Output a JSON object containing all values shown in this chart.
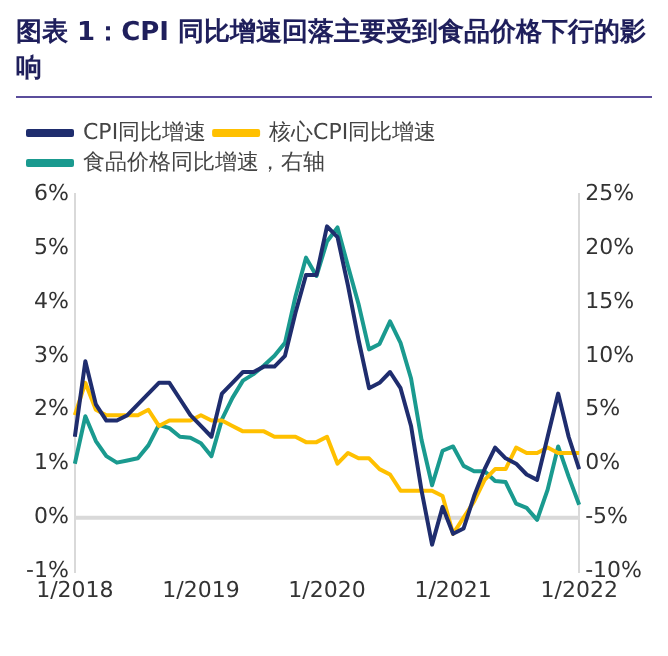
{
  "chart_data": {
    "type": "line",
    "title": "图表 1：CPI 同比增速回落主要受到食品价格下行的影响",
    "categories": [
      "1/2018",
      null,
      null,
      null,
      null,
      null,
      null,
      null,
      null,
      null,
      null,
      null,
      "1/2019",
      null,
      null,
      null,
      null,
      null,
      null,
      null,
      null,
      null,
      null,
      null,
      "1/2020",
      null,
      null,
      null,
      null,
      null,
      null,
      null,
      null,
      null,
      null,
      null,
      "1/2021",
      null,
      null,
      null,
      null,
      null,
      null,
      null,
      null,
      null,
      null,
      null,
      "1/2022"
    ],
    "series": [
      {
        "name": "CPI同比增速",
        "color": "#1f2d6e",
        "values": [
          1.5,
          2.9,
          2.1,
          1.8,
          1.8,
          1.9,
          2.1,
          2.3,
          2.5,
          2.5,
          2.2,
          1.9,
          1.7,
          1.5,
          2.3,
          2.5,
          2.7,
          2.7,
          2.8,
          2.8,
          3.0,
          3.8,
          4.5,
          4.5,
          5.4,
          5.2,
          4.3,
          3.3,
          2.4,
          2.5,
          2.7,
          2.4,
          1.7,
          0.5,
          -0.5,
          0.2,
          -0.3,
          -0.2,
          0.4,
          0.9,
          1.3,
          1.1,
          1.0,
          0.8,
          0.7,
          1.5,
          2.3,
          1.5,
          0.9
        ]
      },
      {
        "name": "核心CPI同比增速",
        "color": "#ffc000",
        "values": [
          1.9,
          2.5,
          2.0,
          1.9,
          1.9,
          1.9,
          1.9,
          2.0,
          1.7,
          1.8,
          1.8,
          1.8,
          1.9,
          1.8,
          1.8,
          1.7,
          1.6,
          1.6,
          1.6,
          1.5,
          1.5,
          1.5,
          1.4,
          1.4,
          1.5,
          1.0,
          1.2,
          1.1,
          1.1,
          0.9,
          0.8,
          0.5,
          0.5,
          0.5,
          0.5,
          0.4,
          -0.3,
          0.0,
          0.3,
          0.7,
          0.9,
          0.9,
          1.3,
          1.2,
          1.2,
          1.3,
          1.2,
          1.2,
          1.2
        ]
      },
      {
        "name": "食品价格同比增速，右轴",
        "color": "#1a9a8f",
        "axis": "y2",
        "values": [
          0.0,
          4.4,
          2.1,
          0.7,
          0.1,
          0.3,
          0.5,
          1.7,
          3.6,
          3.3,
          2.5,
          2.4,
          1.9,
          0.7,
          4.1,
          6.1,
          7.7,
          8.3,
          9.1,
          10.0,
          11.2,
          15.5,
          19.1,
          17.4,
          20.6,
          21.9,
          18.3,
          14.8,
          10.6,
          11.1,
          13.2,
          11.2,
          7.9,
          2.2,
          -2.0,
          1.2,
          1.6,
          -0.2,
          -0.7,
          -0.7,
          -1.6,
          -1.7,
          -3.7,
          -4.1,
          -5.2,
          -2.4,
          1.6,
          -1.2,
          -3.8
        ]
      }
    ],
    "ylim": [
      -1,
      6
    ],
    "yticks": [
      {
        "value": -1,
        "label": "-1%"
      },
      {
        "value": 0,
        "label": "0%"
      },
      {
        "value": 1,
        "label": "1%"
      },
      {
        "value": 2,
        "label": "2%"
      },
      {
        "value": 3,
        "label": "3%"
      },
      {
        "value": 4,
        "label": "4%"
      },
      {
        "value": 5,
        "label": "5%"
      },
      {
        "value": 6,
        "label": "6%"
      }
    ],
    "y2lim": [
      -10,
      25
    ],
    "y2ticks": [
      {
        "value": -10,
        "label": "-10%"
      },
      {
        "value": -5,
        "label": "-5%"
      },
      {
        "value": 0,
        "label": "0%"
      },
      {
        "value": 5,
        "label": "5%"
      },
      {
        "value": 10,
        "label": "10%"
      },
      {
        "value": 15,
        "label": "15%"
      },
      {
        "value": 20,
        "label": "20%"
      },
      {
        "value": 25,
        "label": "25%"
      }
    ],
    "ref_lines": [
      {
        "axis": "y",
        "value": 0,
        "color": "#d9d9d9"
      }
    ],
    "legend": "top left",
    "grid": false,
    "marker": "none",
    "line_style": "solid"
  }
}
